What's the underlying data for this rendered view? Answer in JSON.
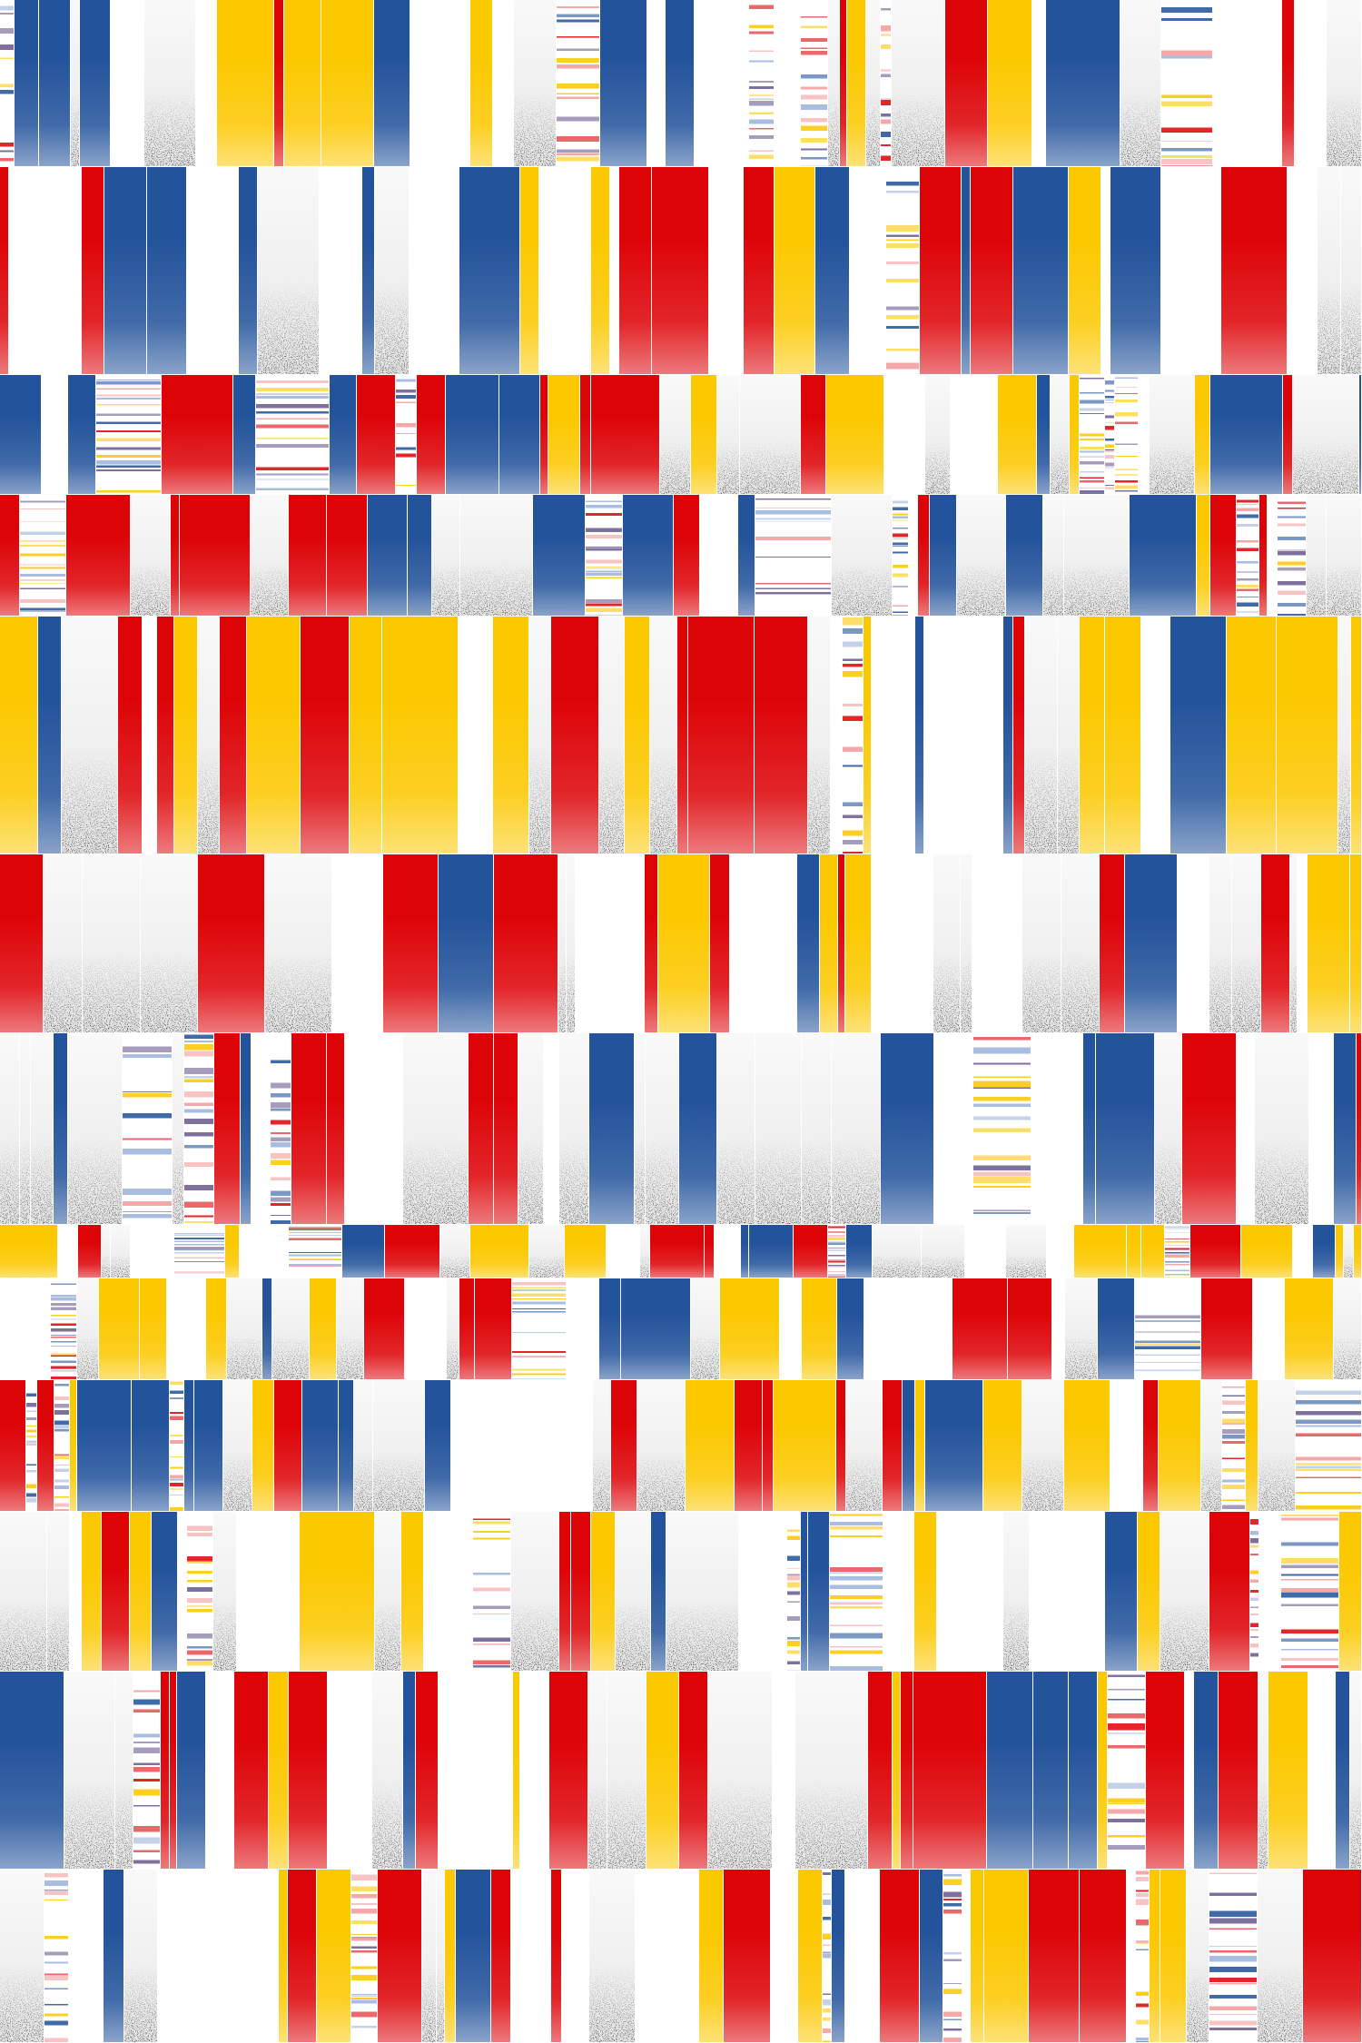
{
  "palette": {
    "blue": "#23539b",
    "red": "#dd0408",
    "yellow": "#fcc800",
    "grey": "#efefef",
    "white": "#ffffff",
    "ink": "#1a1a1a"
  },
  "bar_types": [
    "gradient-blue",
    "gradient-red",
    "gradient-yellow",
    "grey-noise",
    "white",
    "striped"
  ]
}
